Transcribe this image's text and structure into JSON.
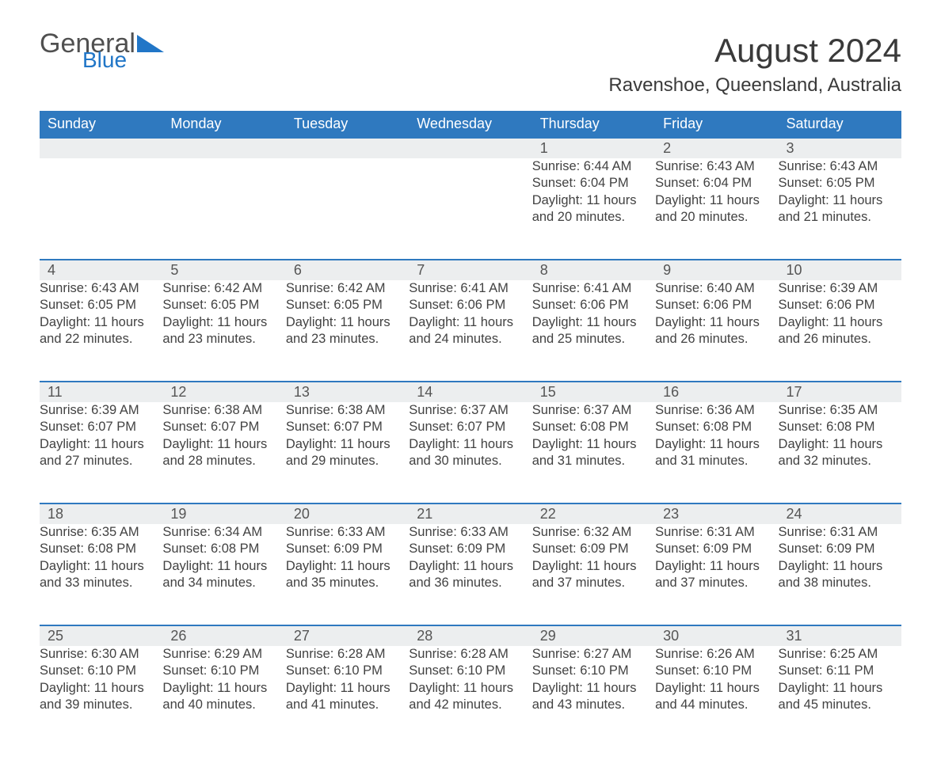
{
  "branding": {
    "name_part1": "General",
    "name_part2": "Blue"
  },
  "header": {
    "title": "August 2024",
    "location": "Ravenshoe, Queensland, Australia"
  },
  "colors": {
    "header_bg": "#2f79bf",
    "header_text": "#ffffff",
    "row_divider": "#2f79bf",
    "daynum_bg": "#eceeef",
    "body_text": "#424242",
    "brand_blue": "#2176c7",
    "brand_gray": "#505050",
    "page_bg": "#ffffff"
  },
  "calendar": {
    "columns": [
      "Sunday",
      "Monday",
      "Tuesday",
      "Wednesday",
      "Thursday",
      "Friday",
      "Saturday"
    ],
    "first_weekday_index": 4,
    "days": [
      {
        "n": 1,
        "sunrise": "6:44 AM",
        "sunset": "6:04 PM",
        "daylight": "11 hours and 20 minutes."
      },
      {
        "n": 2,
        "sunrise": "6:43 AM",
        "sunset": "6:04 PM",
        "daylight": "11 hours and 20 minutes."
      },
      {
        "n": 3,
        "sunrise": "6:43 AM",
        "sunset": "6:05 PM",
        "daylight": "11 hours and 21 minutes."
      },
      {
        "n": 4,
        "sunrise": "6:43 AM",
        "sunset": "6:05 PM",
        "daylight": "11 hours and 22 minutes."
      },
      {
        "n": 5,
        "sunrise": "6:42 AM",
        "sunset": "6:05 PM",
        "daylight": "11 hours and 23 minutes."
      },
      {
        "n": 6,
        "sunrise": "6:42 AM",
        "sunset": "6:05 PM",
        "daylight": "11 hours and 23 minutes."
      },
      {
        "n": 7,
        "sunrise": "6:41 AM",
        "sunset": "6:06 PM",
        "daylight": "11 hours and 24 minutes."
      },
      {
        "n": 8,
        "sunrise": "6:41 AM",
        "sunset": "6:06 PM",
        "daylight": "11 hours and 25 minutes."
      },
      {
        "n": 9,
        "sunrise": "6:40 AM",
        "sunset": "6:06 PM",
        "daylight": "11 hours and 26 minutes."
      },
      {
        "n": 10,
        "sunrise": "6:39 AM",
        "sunset": "6:06 PM",
        "daylight": "11 hours and 26 minutes."
      },
      {
        "n": 11,
        "sunrise": "6:39 AM",
        "sunset": "6:07 PM",
        "daylight": "11 hours and 27 minutes."
      },
      {
        "n": 12,
        "sunrise": "6:38 AM",
        "sunset": "6:07 PM",
        "daylight": "11 hours and 28 minutes."
      },
      {
        "n": 13,
        "sunrise": "6:38 AM",
        "sunset": "6:07 PM",
        "daylight": "11 hours and 29 minutes."
      },
      {
        "n": 14,
        "sunrise": "6:37 AM",
        "sunset": "6:07 PM",
        "daylight": "11 hours and 30 minutes."
      },
      {
        "n": 15,
        "sunrise": "6:37 AM",
        "sunset": "6:08 PM",
        "daylight": "11 hours and 31 minutes."
      },
      {
        "n": 16,
        "sunrise": "6:36 AM",
        "sunset": "6:08 PM",
        "daylight": "11 hours and 31 minutes."
      },
      {
        "n": 17,
        "sunrise": "6:35 AM",
        "sunset": "6:08 PM",
        "daylight": "11 hours and 32 minutes."
      },
      {
        "n": 18,
        "sunrise": "6:35 AM",
        "sunset": "6:08 PM",
        "daylight": "11 hours and 33 minutes."
      },
      {
        "n": 19,
        "sunrise": "6:34 AM",
        "sunset": "6:08 PM",
        "daylight": "11 hours and 34 minutes."
      },
      {
        "n": 20,
        "sunrise": "6:33 AM",
        "sunset": "6:09 PM",
        "daylight": "11 hours and 35 minutes."
      },
      {
        "n": 21,
        "sunrise": "6:33 AM",
        "sunset": "6:09 PM",
        "daylight": "11 hours and 36 minutes."
      },
      {
        "n": 22,
        "sunrise": "6:32 AM",
        "sunset": "6:09 PM",
        "daylight": "11 hours and 37 minutes."
      },
      {
        "n": 23,
        "sunrise": "6:31 AM",
        "sunset": "6:09 PM",
        "daylight": "11 hours and 37 minutes."
      },
      {
        "n": 24,
        "sunrise": "6:31 AM",
        "sunset": "6:09 PM",
        "daylight": "11 hours and 38 minutes."
      },
      {
        "n": 25,
        "sunrise": "6:30 AM",
        "sunset": "6:10 PM",
        "daylight": "11 hours and 39 minutes."
      },
      {
        "n": 26,
        "sunrise": "6:29 AM",
        "sunset": "6:10 PM",
        "daylight": "11 hours and 40 minutes."
      },
      {
        "n": 27,
        "sunrise": "6:28 AM",
        "sunset": "6:10 PM",
        "daylight": "11 hours and 41 minutes."
      },
      {
        "n": 28,
        "sunrise": "6:28 AM",
        "sunset": "6:10 PM",
        "daylight": "11 hours and 42 minutes."
      },
      {
        "n": 29,
        "sunrise": "6:27 AM",
        "sunset": "6:10 PM",
        "daylight": "11 hours and 43 minutes."
      },
      {
        "n": 30,
        "sunrise": "6:26 AM",
        "sunset": "6:10 PM",
        "daylight": "11 hours and 44 minutes."
      },
      {
        "n": 31,
        "sunrise": "6:25 AM",
        "sunset": "6:11 PM",
        "daylight": "11 hours and 45 minutes."
      }
    ],
    "labels": {
      "sunrise": "Sunrise:",
      "sunset": "Sunset:",
      "daylight": "Daylight:"
    }
  }
}
